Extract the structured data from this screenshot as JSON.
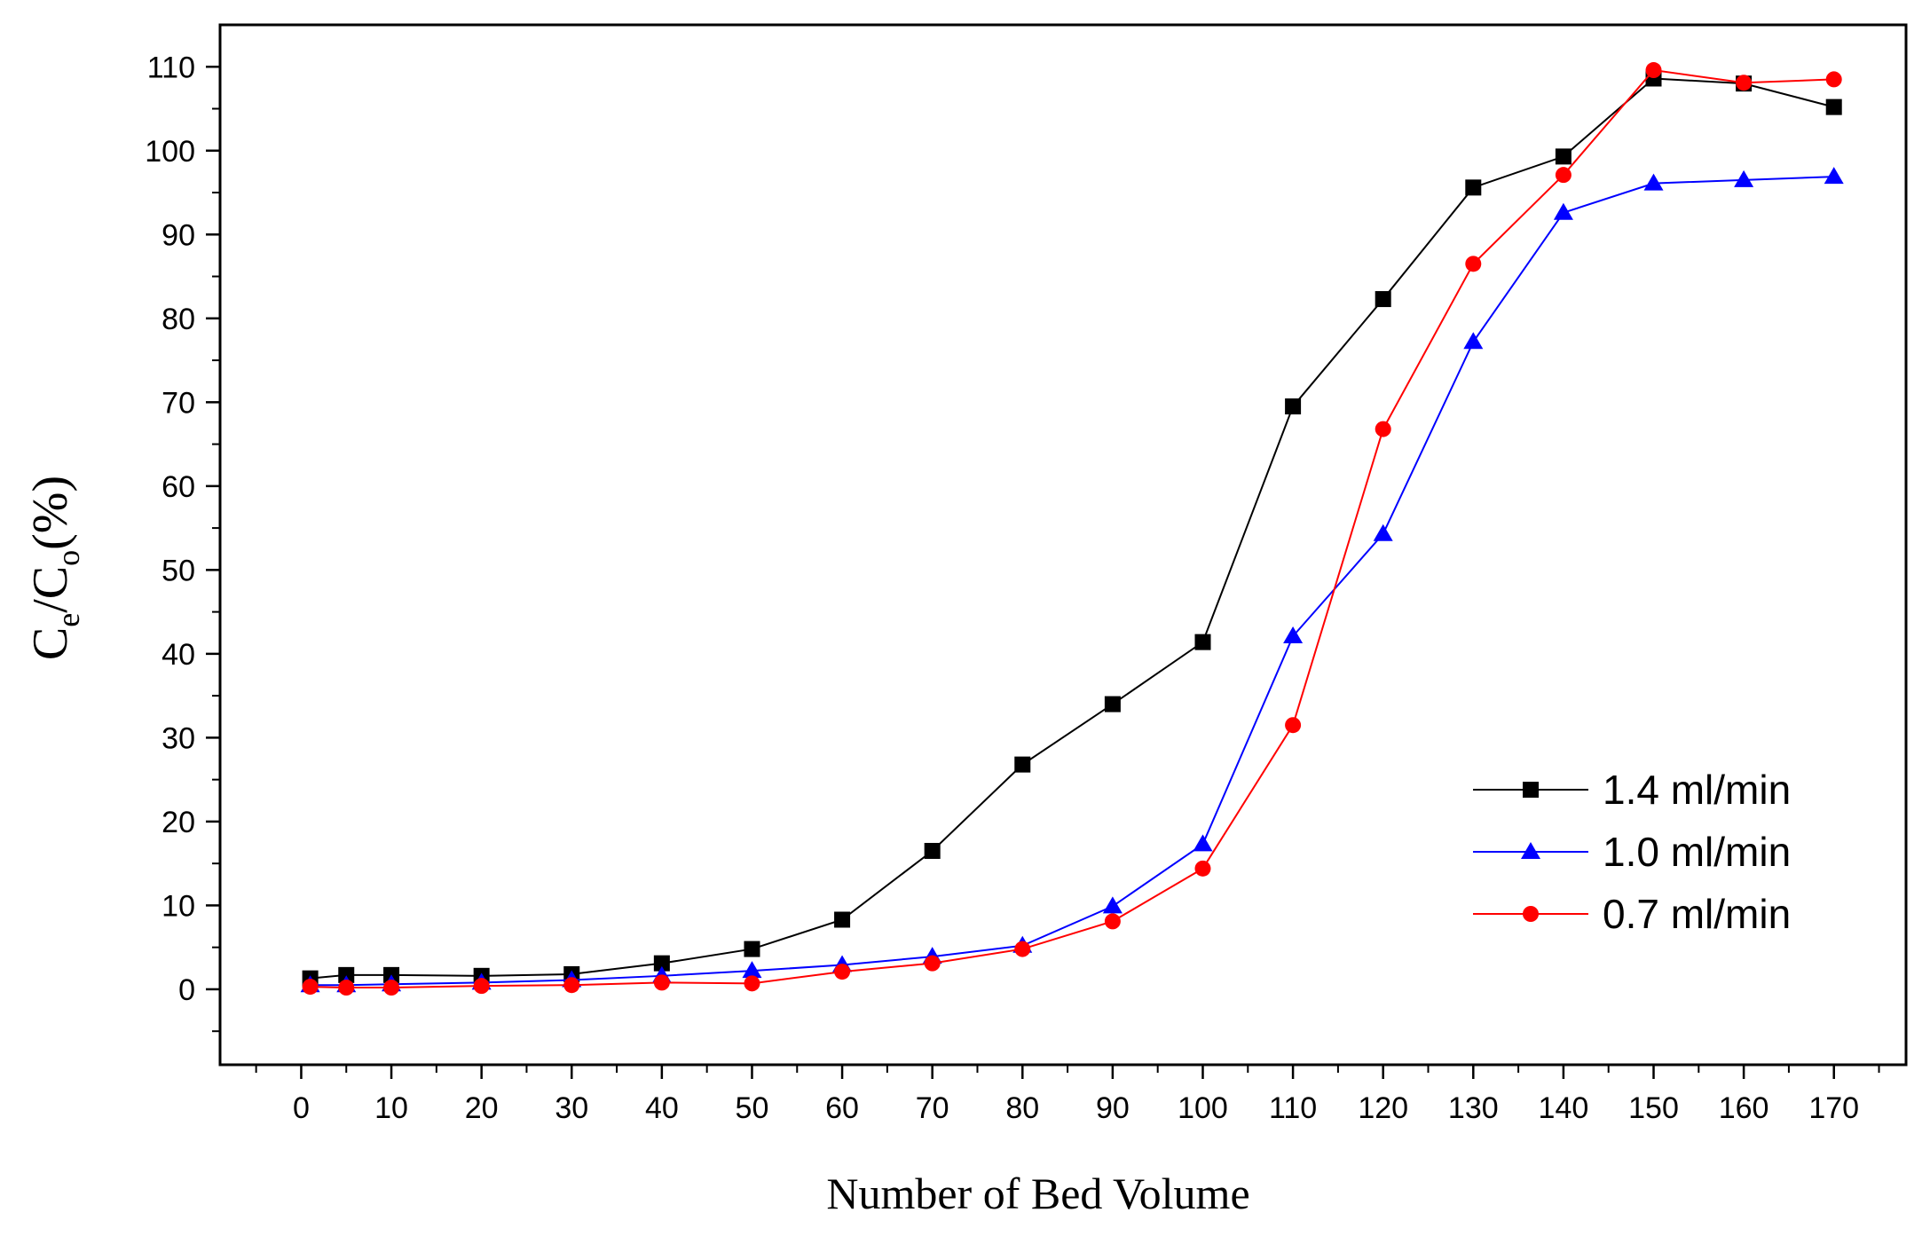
{
  "chart_data": {
    "type": "line",
    "title": "",
    "xlabel": "Number of Bed Volume",
    "ylabel": {
      "main": "C",
      "sub1": "e",
      "mid": "/C",
      "sub2": "o",
      "suffix": "(%)"
    },
    "xlim": [
      -9,
      178
    ],
    "ylim": [
      -9,
      115
    ],
    "xticks": [
      0,
      10,
      20,
      30,
      40,
      50,
      60,
      70,
      80,
      90,
      100,
      110,
      120,
      130,
      140,
      150,
      160,
      170
    ],
    "yticks": [
      0,
      10,
      20,
      30,
      40,
      50,
      60,
      70,
      80,
      90,
      100,
      110
    ],
    "grid": false,
    "legend_position": "lower-right",
    "x": [
      1,
      5,
      10,
      20,
      30,
      40,
      50,
      60,
      70,
      80,
      90,
      100,
      110,
      120,
      130,
      140,
      150,
      160,
      170
    ],
    "series": [
      {
        "name": "1.4 ml/min",
        "color": "#000000",
        "marker": "square",
        "values": [
          1.3,
          1.7,
          1.7,
          1.6,
          1.8,
          3.1,
          4.8,
          8.3,
          16.5,
          26.8,
          34.0,
          41.4,
          69.5,
          82.3,
          95.6,
          99.3,
          108.6,
          108.0,
          105.2
        ]
      },
      {
        "name": "1.0 ml/min",
        "color": "#0000ff",
        "marker": "triangle",
        "values": [
          0.5,
          0.5,
          0.6,
          0.8,
          1.1,
          1.6,
          2.2,
          2.9,
          3.9,
          5.2,
          9.9,
          17.3,
          42.1,
          54.3,
          77.2,
          92.6,
          96.1,
          96.5,
          96.9
        ]
      },
      {
        "name": "0.7 ml/min",
        "color": "#ff0000",
        "marker": "circle",
        "values": [
          0.3,
          0.2,
          0.2,
          0.4,
          0.5,
          0.8,
          0.7,
          2.1,
          3.1,
          4.8,
          8.1,
          14.4,
          31.5,
          66.8,
          86.5,
          97.1,
          109.6,
          108.1,
          108.5
        ]
      }
    ]
  }
}
